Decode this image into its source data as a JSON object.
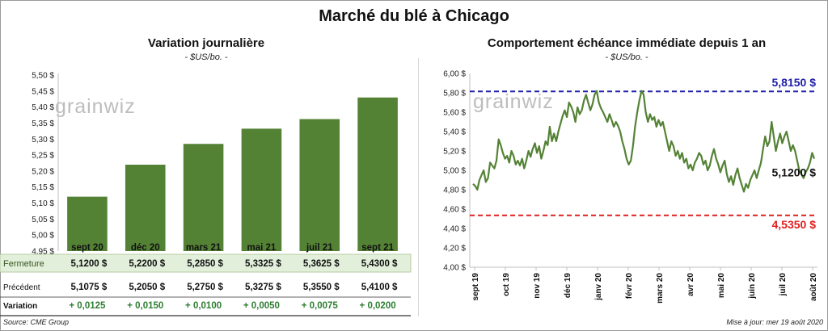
{
  "title": "Marché du blé à Chicago",
  "watermark": "grainwiz",
  "source": "Source: CME Group",
  "update": "Mise à jour: mer 19 août 2020",
  "left_panel": {
    "title": "Variation  journalière",
    "subtitle": "- $US/bo. -",
    "rows": [
      {
        "label": "Fermeture",
        "values": [
          "5,1200  $",
          "5,2200  $",
          "5,2850  $",
          "5,3325  $",
          "5,3625  $",
          "5,4300  $"
        ]
      },
      {
        "label": "Précédent",
        "values": [
          "5,1075  $",
          "5,2050  $",
          "5,2750  $",
          "5,3275  $",
          "5,3550  $",
          "5,4100  $"
        ]
      },
      {
        "label": "Variation",
        "values": [
          "+ 0,0125",
          "+ 0,0150",
          "+ 0,0100",
          "+ 0,0050",
          "+ 0,0075",
          "+ 0,0200"
        ]
      }
    ]
  },
  "right_panel": {
    "title": "Comportement  échéance immédiate depuis 1 an",
    "subtitle": "- $US/bo. -"
  },
  "colors": {
    "bar": "#548235",
    "line": "#548235",
    "high": "#1f1fa8",
    "low": "#e02020",
    "band": "#e2efda",
    "positive": "#2e7d32"
  },
  "chart_data": [
    {
      "type": "bar",
      "categories": [
        "sept 20",
        "déc 20",
        "mars 21",
        "mai 21",
        "juil 21",
        "sept 21"
      ],
      "values": [
        5.12,
        5.22,
        5.285,
        5.3325,
        5.3625,
        5.43
      ],
      "ylim": [
        4.95,
        5.5
      ],
      "yticks": [
        "4,95 $",
        "5,00 $",
        "5,05 $",
        "5,10 $",
        "5,15 $",
        "5,20 $",
        "5,25 $",
        "5,30 $",
        "5,35 $",
        "5,40 $",
        "5,45 $",
        "5,50 $"
      ],
      "grid": false
    },
    {
      "type": "line",
      "ylim": [
        4.0,
        6.0
      ],
      "yticks": [
        "4,00 $",
        "4,20 $",
        "4,40 $",
        "4,60 $",
        "4,80 $",
        "5,00 $",
        "5,20 $",
        "5,40 $",
        "5,60 $",
        "5,80 $",
        "6,00 $"
      ],
      "xticks": [
        "sept 19",
        "oct 19",
        "nov 19",
        "déc 19",
        "janv 20",
        "févr 20",
        "mars 20",
        "avr 20",
        "mai 20",
        "juin 20",
        "juil 20",
        "août 20"
      ],
      "reference_lines": [
        {
          "value": 5.815,
          "label": "5,8150  $",
          "color": "#1f1fa8"
        },
        {
          "value": 4.535,
          "label": "4,5350  $",
          "color": "#e02020"
        }
      ],
      "last_label": "5,1200 $",
      "series": [
        {
          "values": [
            4.86,
            4.84,
            4.8,
            4.9,
            4.95,
            5.0,
            4.88,
            4.92,
            5.08,
            5.05,
            5.02,
            5.1,
            5.32,
            5.26,
            5.18,
            5.12,
            5.15,
            5.08,
            5.2,
            5.15,
            5.06,
            5.1,
            5.05,
            5.12,
            5.02,
            5.1,
            5.2,
            5.14,
            5.22,
            5.28,
            5.18,
            5.25,
            5.12,
            5.2,
            5.3,
            5.26,
            5.45,
            5.3,
            5.38,
            5.3,
            5.4,
            5.48,
            5.56,
            5.62,
            5.55,
            5.7,
            5.66,
            5.6,
            5.5,
            5.65,
            5.58,
            5.62,
            5.72,
            5.78,
            5.7,
            5.62,
            5.68,
            5.78,
            5.82,
            5.7,
            5.64,
            5.6,
            5.55,
            5.5,
            5.58,
            5.52,
            5.45,
            5.5,
            5.46,
            5.4,
            5.3,
            5.22,
            5.12,
            5.06,
            5.1,
            5.25,
            5.45,
            5.6,
            5.72,
            5.82,
            5.78,
            5.6,
            5.5,
            5.58,
            5.52,
            5.55,
            5.45,
            5.52,
            5.46,
            5.5,
            5.4,
            5.3,
            5.2,
            5.3,
            5.25,
            5.15,
            5.2,
            5.12,
            5.18,
            5.08,
            5.12,
            5.02,
            5.06,
            5.0,
            5.08,
            5.12,
            5.18,
            5.15,
            5.06,
            5.1,
            5.0,
            5.05,
            5.15,
            5.22,
            5.12,
            5.06,
            4.98,
            5.05,
            5.1,
            4.96,
            4.88,
            4.94,
            4.85,
            4.95,
            5.02,
            4.92,
            4.85,
            4.78,
            4.86,
            4.82,
            4.9,
            4.95,
            5.0,
            4.92,
            5.0,
            5.08,
            5.22,
            5.35,
            5.25,
            5.3,
            5.5,
            5.35,
            5.2,
            5.3,
            5.38,
            5.28,
            5.35,
            5.4,
            5.3,
            5.2,
            5.26,
            5.2,
            5.1,
            5.0,
            4.96,
            4.92,
            4.98,
            5.02,
            5.08,
            5.18,
            5.12
          ]
        }
      ]
    }
  ]
}
